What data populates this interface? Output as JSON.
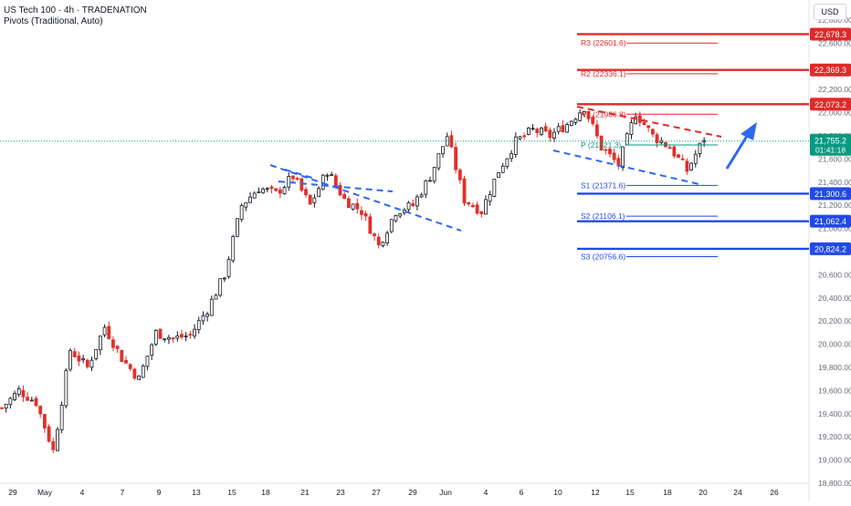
{
  "header": {
    "title": "US Tech 100 · 4h · TRADENATION",
    "indicator": "Pivots (Traditional, Auto)"
  },
  "currency": "USD",
  "colors": {
    "up": "#131722",
    "down": "#e0302b",
    "resistance": "#e02a2a",
    "support": "#2249e6",
    "pivot_label": "#089981",
    "trend": "#2f67f0"
  },
  "chart_data": {
    "type": "candlestick",
    "title": "US Tech 100 · 4h · TRADENATION",
    "ylim": [
      18800,
      22800
    ],
    "y_ticks": [
      18800,
      19000,
      19200,
      19400,
      19600,
      19800,
      20000,
      20200,
      20400,
      20600,
      20800,
      21000,
      21200,
      21400,
      21600,
      21800,
      22000,
      22200,
      22400,
      22600,
      22800
    ],
    "x_ticks": [
      "29",
      "May",
      "4",
      "7",
      "9",
      "13",
      "15",
      "18",
      "21",
      "23",
      "27",
      "29",
      "Jun",
      "4",
      "6",
      "10",
      "12",
      "15",
      "18",
      "20",
      "24",
      "26"
    ],
    "series": [
      {
        "name": "",
        "close_trajectory": [
          [
            0,
            19450
          ],
          [
            4,
            19600
          ],
          [
            8,
            19500
          ],
          [
            12,
            19080
          ],
          [
            16,
            19950
          ],
          [
            20,
            19800
          ],
          [
            24,
            20150
          ],
          [
            28,
            19880
          ],
          [
            32,
            19700
          ],
          [
            36,
            20100
          ],
          [
            40,
            20050
          ],
          [
            44,
            20080
          ],
          [
            48,
            20300
          ],
          [
            52,
            20600
          ],
          [
            56,
            21200
          ],
          [
            60,
            21350
          ],
          [
            64,
            21300
          ],
          [
            68,
            21450
          ],
          [
            72,
            21200
          ],
          [
            76,
            21500
          ],
          [
            80,
            21250
          ],
          [
            84,
            21150
          ],
          [
            88,
            20850
          ],
          [
            92,
            21150
          ],
          [
            96,
            21200
          ],
          [
            100,
            21450
          ],
          [
            104,
            21800
          ],
          [
            108,
            21250
          ],
          [
            112,
            21150
          ],
          [
            116,
            21500
          ],
          [
            120,
            21750
          ],
          [
            124,
            21850
          ],
          [
            128,
            21800
          ],
          [
            132,
            21900
          ],
          [
            136,
            22050
          ],
          [
            140,
            21700
          ],
          [
            144,
            21550
          ],
          [
            148,
            22000
          ],
          [
            152,
            21800
          ],
          [
            156,
            21700
          ],
          [
            160,
            21500
          ],
          [
            164,
            21780
          ]
        ]
      }
    ],
    "pivot_levels": [
      {
        "name": "R3",
        "label": "R3 (22601.6)",
        "value": 22601.6
      },
      {
        "name": "R2",
        "label": "R2 (22336.1)",
        "value": 22336.1
      },
      {
        "name": "R1",
        "label": "R1 (21986.8)",
        "value": 21986.8
      },
      {
        "name": "P",
        "label": "P (21721.3)",
        "value": 21721.3
      },
      {
        "name": "S1",
        "label": "S1 (21371.6)",
        "value": 21371.6
      },
      {
        "name": "S2",
        "label": "S2 (21106.1)",
        "value": 21106.1
      },
      {
        "name": "S3",
        "label": "S3 (20756.6)",
        "value": 20756.6
      }
    ],
    "horizontal_levels": [
      {
        "value": 22678.3,
        "label": "22,678.3",
        "kind": "resistance"
      },
      {
        "value": 22369.3,
        "label": "22,369.3",
        "kind": "resistance"
      },
      {
        "value": 22073.2,
        "label": "22,073.2",
        "kind": "resistance"
      },
      {
        "value": 21300.6,
        "label": "21,300.6",
        "kind": "support"
      },
      {
        "value": 21062.4,
        "label": "21,062.4",
        "kind": "support"
      },
      {
        "value": 20824.2,
        "label": "20,824.2",
        "kind": "support"
      }
    ],
    "last_price": {
      "value": 21755.2,
      "label": "21,755.2",
      "countdown": "01:41:18"
    },
    "grid": false,
    "legend": "none"
  }
}
